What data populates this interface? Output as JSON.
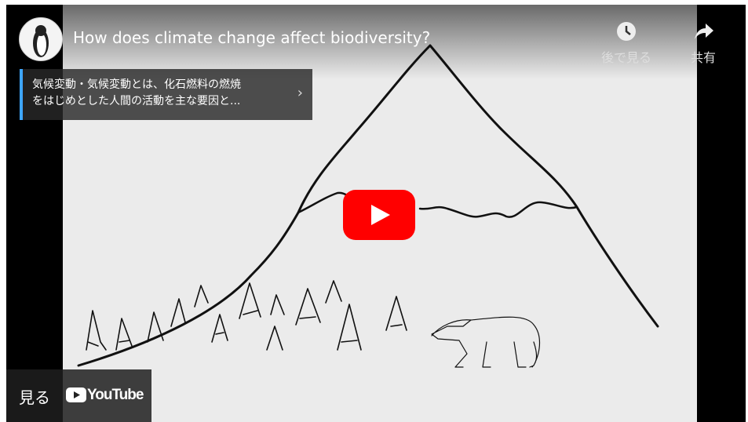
{
  "video": {
    "title": "How does climate change affect biodiversity?",
    "card": {
      "line1": "気候変動・気候変動とは、化石燃料の燃焼",
      "line2": "をはじめとした人間の活動を主な要因と..."
    },
    "actions": [
      {
        "label": "後で見る"
      },
      {
        "label": "共有"
      }
    ],
    "watch": {
      "label": "見る",
      "logo": "YouTube"
    }
  }
}
